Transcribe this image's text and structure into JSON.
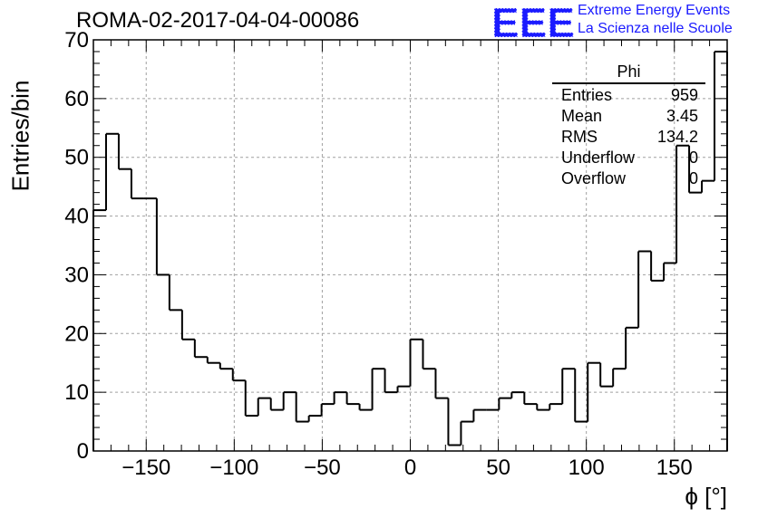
{
  "title": "ROMA-02-2017-04-04-00086",
  "logo": {
    "mark": "EEE",
    "line1": "Extreme Energy Events",
    "line2": "La Scienza nelle Scuole",
    "color": "#1a1aff"
  },
  "stats": {
    "name": "Phi",
    "rows": [
      {
        "label": "Entries",
        "value": "959"
      },
      {
        "label": "Mean",
        "value": "3.45"
      },
      {
        "label": "RMS",
        "value": "134.2"
      },
      {
        "label": "Underflow",
        "value": "0"
      },
      {
        "label": "Overflow",
        "value": "0"
      }
    ]
  },
  "chart_data": {
    "type": "histogram",
    "title": "ROMA-02-2017-04-04-00086",
    "xlabel": "ϕ [°]",
    "ylabel": "Entries/bin",
    "xlim": [
      -180,
      180
    ],
    "ylim": [
      0,
      70
    ],
    "bin_width": 7.2,
    "grid": true,
    "x_ticks": [
      -150,
      -100,
      -50,
      0,
      50,
      100,
      150
    ],
    "x_tick_labels": [
      "−150",
      "−100",
      "−50",
      "0",
      "50",
      "100",
      "150"
    ],
    "y_ticks": [
      0,
      10,
      20,
      30,
      40,
      50,
      60,
      70
    ],
    "y_tick_labels": [
      "0",
      "10",
      "20",
      "30",
      "40",
      "50",
      "60",
      "70"
    ],
    "values": [
      41,
      54,
      48,
      43,
      43,
      30,
      24,
      19,
      16,
      15,
      14,
      12,
      6,
      9,
      7,
      10,
      5,
      6,
      8,
      10,
      8,
      7,
      14,
      10,
      11,
      19,
      14,
      9,
      1,
      5,
      7,
      7,
      9,
      10,
      8,
      7,
      8,
      14,
      5,
      15,
      11,
      14,
      21,
      34,
      29,
      32,
      52,
      44,
      46,
      68
    ]
  }
}
